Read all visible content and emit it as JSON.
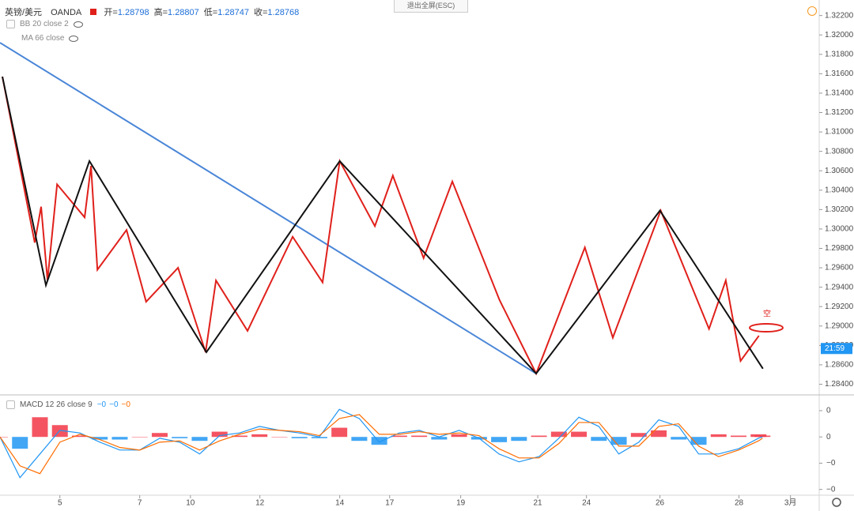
{
  "header": {
    "symbol": "英镑/美元",
    "source": "OANDA",
    "ohlc": [
      {
        "label": "开=",
        "value": 1.28798
      },
      {
        "label": "高=",
        "value": 1.28807
      },
      {
        "label": "低=",
        "value": 1.28747
      },
      {
        "label": "收=",
        "value": 1.28768
      }
    ]
  },
  "indicators": [
    "BB 20 close 2",
    "MA 66 close"
  ],
  "button": "退出全屏(ESC)",
  "chart_data": [
    {
      "type": "line",
      "xlim": [
        0,
        20.5
      ],
      "ylim": [
        1.2829,
        1.3236
      ],
      "xticks": [
        {
          "value": 1.5,
          "label": "5"
        },
        {
          "value": 3.5,
          "label": "7"
        },
        {
          "value": 4.77,
          "label": "10"
        },
        {
          "value": 6.51,
          "label": "12"
        },
        {
          "value": 8.51,
          "label": "14"
        },
        {
          "value": 9.76,
          "label": "17"
        },
        {
          "value": 11.54,
          "label": "19"
        },
        {
          "value": 13.47,
          "label": "21"
        },
        {
          "value": 14.69,
          "label": "24"
        },
        {
          "value": 16.53,
          "label": "26"
        },
        {
          "value": 18.51,
          "label": "28"
        },
        {
          "value": 19.8,
          "label": "3月"
        }
      ],
      "yticks": [
        {
          "value": 1.322,
          "label": "1.32200"
        },
        {
          "value": 1.32,
          "label": "1.32000"
        },
        {
          "value": 1.318,
          "label": "1.31800"
        },
        {
          "value": 1.316,
          "label": "1.31600"
        },
        {
          "value": 1.314,
          "label": "1.31400"
        },
        {
          "value": 1.312,
          "label": "1.31200"
        },
        {
          "value": 1.31,
          "label": "1.31000"
        },
        {
          "value": 1.308,
          "label": "1.30800"
        },
        {
          "value": 1.306,
          "label": "1.30600"
        },
        {
          "value": 1.304,
          "label": "1.30400"
        },
        {
          "value": 1.302,
          "label": "1.30200"
        },
        {
          "value": 1.3,
          "label": "1.30000"
        },
        {
          "value": 1.298,
          "label": "1.29800"
        },
        {
          "value": 1.296,
          "label": "1.29600"
        },
        {
          "value": 1.294,
          "label": "1.29400"
        },
        {
          "value": 1.292,
          "label": "1.29200"
        },
        {
          "value": 1.29,
          "label": "1.29000"
        },
        {
          "value": 1.288,
          "label": "1.28800"
        },
        {
          "value": 1.286,
          "label": "1.28600"
        },
        {
          "value": 1.284,
          "label": "1.28400"
        }
      ],
      "series": [
        {
          "color": "#4a86d8",
          "x": [
            0,
            13.43
          ],
          "values": [
            1.3192,
            1.2851
          ]
        },
        {
          "color": "#e0201b",
          "x": [
            0.06,
            0.87,
            1.03,
            1.19,
            1.43,
            2.12,
            2.28,
            2.44,
            3.17,
            3.66,
            4.46,
            5.15,
            5.41,
            6.2,
            7.33,
            8.08,
            8.51,
            9.39,
            9.84,
            10.61,
            11.33,
            12.51,
            13.43,
            14.65,
            15.35,
            16.55,
            17.76,
            18.18,
            18.55,
            19.01
          ],
          "values": [
            1.3157,
            1.2986,
            1.3023,
            1.2947,
            1.3046,
            1.3012,
            1.3065,
            1.2958,
            1.2999,
            1.2925,
            1.296,
            1.2873,
            1.2947,
            1.2895,
            1.2992,
            1.2945,
            1.307,
            1.3003,
            1.3055,
            1.297,
            1.3049,
            1.2927,
            1.2851,
            1.2981,
            1.2888,
            1.3019,
            1.2897,
            1.2947,
            1.2864,
            1.289
          ]
        },
        {
          "color": "#111111",
          "x": [
            0.06,
            1.15,
            2.24,
            5.17,
            8.51,
            13.43,
            16.53,
            19.11
          ],
          "values": [
            1.3157,
            1.2942,
            1.307,
            1.2873,
            1.307,
            1.2851,
            1.3019,
            1.2856
          ]
        }
      ],
      "time_tag": "21:59",
      "annotation": "空"
    },
    {
      "type": "macd",
      "title": "MACD 12 26 close 9",
      "legend_values": [
        {
          "label": "−0",
          "color": "#2196f3"
        },
        {
          "label": "−0",
          "color": "#2196f3"
        },
        {
          "label": "−0",
          "color": "#ff6d00"
        }
      ],
      "ylim": [
        -0.0045,
        0.0029
      ],
      "yticks": [
        {
          "value": 0.002,
          "label": "0"
        },
        0,
        {
          "value": -0.002,
          "label": "−0"
        },
        {
          "value": -0.004,
          "label": "−0"
        }
      ],
      "x": [
        0,
        0.5,
        1,
        1.5,
        2,
        2.5,
        3,
        3.5,
        4,
        4.5,
        5,
        5.5,
        6,
        6.5,
        7,
        7.5,
        8,
        8.5,
        9,
        9.5,
        10,
        10.5,
        11,
        11.5,
        12,
        12.5,
        13,
        13.5,
        14,
        14.5,
        15,
        15.5,
        16,
        16.5,
        17,
        17.5,
        18,
        18.5,
        19,
        19.1
      ],
      "series": [
        {
          "color": "#2196f3",
          "values": [
            0,
            -0.0031,
            -0.0013,
            0.0005,
            0.0003,
            -0.0004,
            -0.001,
            -0.001,
            -0.0001,
            -0.0004,
            -0.0013,
            0.0001,
            0.0003,
            0.0008,
            0.0005,
            0.0003,
            0,
            0.0021,
            0.0014,
            -0.0004,
            0.0003,
            0.0005,
            0,
            0.0005,
            -0.0001,
            -0.0013,
            -0.0019,
            -0.0015,
            -0.0001,
            0.0015,
            0.0008,
            -0.0013,
            -0.0004,
            0.0013,
            0.0008,
            -0.0013,
            -0.0013,
            -0.0009,
            -0.0001,
            0
          ]
        },
        {
          "color": "#ff6d00",
          "values": [
            0,
            -0.0022,
            -0.0028,
            -0.0004,
            0.0002,
            -0.0002,
            -0.0008,
            -0.001,
            -0.0004,
            -0.0003,
            -0.001,
            -0.0003,
            0.0002,
            0.0006,
            0.0005,
            0.0004,
            0.0001,
            0.0014,
            0.0017,
            0.0002,
            0.0002,
            0.0004,
            0.0002,
            0.0003,
            0.0001,
            -0.0009,
            -0.0016,
            -0.0016,
            -0.0005,
            0.0011,
            0.0011,
            -0.0007,
            -0.0007,
            0.0008,
            0.001,
            -0.0007,
            -0.0015,
            -0.001,
            -0.0003,
            -0.0001
          ]
        }
      ],
      "histogram": {
        "up_color": "#f23645",
        "down_color": "#2196f3",
        "values": [
          0,
          -0.0009,
          0.0015,
          0.0009,
          0.0001,
          -0.0002,
          -0.0002,
          0,
          0.0003,
          -0.0001,
          -0.0003,
          0.0004,
          0.0001,
          0.0002,
          0,
          -0.0001,
          -0.0001,
          0.0007,
          -0.0003,
          -0.0006,
          0.0001,
          0.0001,
          -0.0002,
          0.0002,
          -0.0002,
          -0.0004,
          -0.0003,
          0.0001,
          0.0004,
          0.0004,
          -0.0003,
          -0.0006,
          0.0003,
          0.0005,
          -0.0002,
          -0.0006,
          0.0002,
          0.0001,
          0.0002,
          0.0001
        ]
      }
    }
  ]
}
